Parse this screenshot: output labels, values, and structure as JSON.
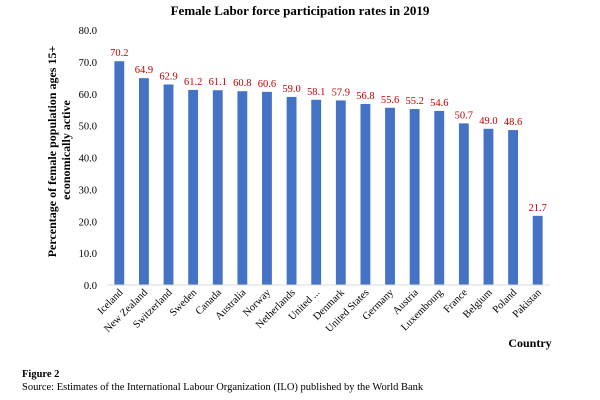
{
  "chart_data": {
    "type": "bar",
    "title": "Female Labor force participation rates in 2019",
    "xlabel": "Country",
    "ylabel_lines": [
      "Percentage of female population ages 15+",
      "economically active"
    ],
    "categories": [
      "Iceland",
      "New Zealand",
      "Switzerland",
      "Sweden",
      "Canada",
      "Australia",
      "Norway",
      "Netherlands",
      "United ...",
      "Denmark",
      "United States",
      "Germany",
      "Austria",
      "Luxembourg",
      "France",
      "Belgium",
      "Poland",
      "Pakistan"
    ],
    "values": [
      70.2,
      64.9,
      62.9,
      61.2,
      61.1,
      60.8,
      60.6,
      59.0,
      58.1,
      57.9,
      56.8,
      55.6,
      55.2,
      54.6,
      50.7,
      49.0,
      48.6,
      21.7
    ],
    "data_labels": [
      "70.2",
      "64.9",
      "62.9",
      "61.2",
      "61.1",
      "60.8",
      "60.6",
      "59.0",
      "58.1",
      "57.9",
      "56.8",
      "55.6",
      "55.2",
      "54.6",
      "50.7",
      "49.0",
      "48.6",
      "21.7"
    ],
    "yticks": [
      "0.0",
      "10.0",
      "20.0",
      "30.0",
      "40.0",
      "50.0",
      "60.0",
      "70.0",
      "80.0"
    ],
    "ylim": [
      0,
      80
    ],
    "grid": false,
    "legend": "none",
    "bar_color": "#4472c4",
    "label_color": "#c00000"
  },
  "figure": {
    "label": "Figure 2",
    "source": "Source: Estimates of the International Labour Organization (ILO) published by the World Bank"
  }
}
